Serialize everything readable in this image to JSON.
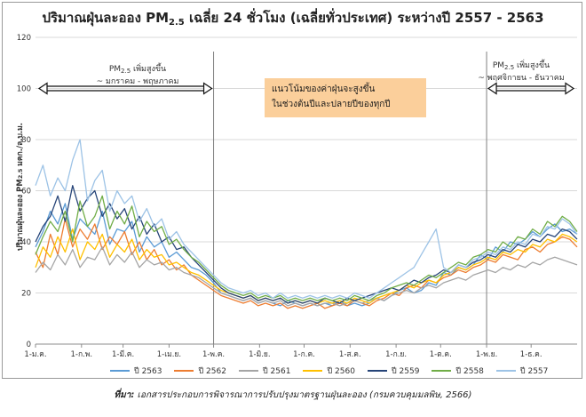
{
  "title": {
    "prefix": "ปริมาณฝุ่นละออง PM",
    "sub": "2.5",
    "suffix": " เฉลี่ย 24 ชั่วโมง (เฉลี่ยทั่วประเทศ) ระหว่างปี 2557 - 2563"
  },
  "annotations": {
    "left_label": "PM",
    "left_label_sub": "2.5",
    "left_label_rest": " เพิ่มสูงขึ้น",
    "left_range": "~ มกราคม - พฤษภาคม",
    "right_label": "PM",
    "right_label_sub": "2.5",
    "right_label_rest": " เพิ่มสูงขึ้น",
    "right_range": "~ พฤศจิกายน - ธันวาคม",
    "note_line1": "แนวโน้มของค่าฝุ่นจะสูงขึ้น",
    "note_line2": "ในช่วงต้นปีและปลายปีของทุกปี",
    "note_color": "#fbcf9b"
  },
  "source": {
    "label": "ที่มา:",
    "text": " เอกสารประกอบการพิจารณาการปรับปรุงมาตรฐานฝุ่นละออง (กรมควบคุมมลพิษ, 2566)"
  },
  "chart_data": {
    "type": "line",
    "title": "ปริมาณฝุ่นละออง PM2.5 เฉลี่ย 24 ชั่วโมง (เฉลี่ยทั่วประเทศ) ระหว่างปี 2557 - 2563",
    "ylabel": "ปริมาณฝุ่นละออง PM2.5 มคก./ล.บ.ม.",
    "ylabel_prefix": "ปริมาณฝุ่นละออง PM",
    "ylabel_sub": "2.5",
    "ylabel_suffix": " มคก./ล.บ.ม.",
    "xlabel": "",
    "ylim": [
      0,
      120
    ],
    "yticks": [
      0,
      20,
      40,
      60,
      80,
      100,
      120
    ],
    "grid": "horizontal",
    "legend_position": "bottom",
    "x_tick_labels": [
      "1-ม.ค.",
      "1-ก.พ.",
      "1-มี.ค.",
      "1-เม.ย.",
      "1-พ.ค.",
      "1-มิ.ย.",
      "1-ก.ค.",
      "1-ส.ค.",
      "1-ก.ย.",
      "1-ต.ค.",
      "1-พ.ย.",
      "1-ธ.ค."
    ],
    "x_tick_days": [
      1,
      32,
      60,
      91,
      121,
      152,
      182,
      213,
      244,
      274,
      305,
      335
    ],
    "x_max_day": 366,
    "vertical_markers_day": [
      121,
      305
    ],
    "categories_note": "day of year, sampled every 5 days starting at day 1",
    "series": [
      {
        "name": "ปี 2563",
        "color": "#5b9bd5",
        "values": [
          38,
          44,
          52,
          47,
          55,
          41,
          49,
          46,
          43,
          52,
          39,
          45,
          44,
          48,
          36,
          42,
          38,
          40,
          34,
          36,
          33,
          30,
          29,
          27,
          24,
          20,
          19,
          18,
          17,
          18,
          16,
          17,
          16,
          15,
          17,
          16,
          15,
          16,
          15,
          16,
          15,
          17,
          15,
          16,
          15,
          16,
          18,
          17,
          19,
          21,
          22,
          20,
          21,
          24,
          23,
          28,
          27,
          30,
          29,
          31,
          35,
          33,
          38,
          36,
          40,
          39,
          41,
          44,
          42,
          45,
          47,
          44,
          45,
          43
        ]
      },
      {
        "name": "ปี 2562",
        "color": "#ed7d31",
        "values": [
          36,
          30,
          43,
          35,
          49,
          38,
          45,
          41,
          47,
          37,
          42,
          39,
          44,
          35,
          40,
          33,
          37,
          31,
          33,
          29,
          31,
          27,
          25,
          23,
          21,
          19,
          18,
          17,
          16,
          17,
          15,
          16,
          15,
          16,
          14,
          15,
          14,
          15,
          16,
          14,
          15,
          16,
          15,
          17,
          16,
          15,
          17,
          18,
          20,
          19,
          22,
          23,
          22,
          25,
          24,
          26,
          27,
          29,
          28,
          30,
          31,
          33,
          32,
          35,
          34,
          33,
          37,
          38,
          36,
          39,
          40,
          42,
          41,
          38
        ]
      },
      {
        "name": "ปี 2561",
        "color": "#a5a5a5",
        "values": [
          28,
          32,
          29,
          35,
          31,
          37,
          30,
          34,
          33,
          38,
          31,
          35,
          32,
          36,
          30,
          33,
          31,
          32,
          29,
          30,
          28,
          27,
          26,
          24,
          22,
          20,
          19,
          18,
          17,
          18,
          16,
          17,
          16,
          17,
          15,
          16,
          15,
          16,
          15,
          16,
          16,
          15,
          16,
          17,
          16,
          17,
          18,
          17,
          19,
          20,
          21,
          20,
          22,
          23,
          22,
          24,
          25,
          26,
          25,
          27,
          28,
          29,
          28,
          30,
          29,
          31,
          30,
          32,
          31,
          33,
          34,
          33,
          32,
          31
        ]
      },
      {
        "name": "ปี 2560",
        "color": "#ffc000",
        "values": [
          30,
          38,
          34,
          42,
          36,
          45,
          33,
          40,
          37,
          43,
          34,
          39,
          36,
          41,
          33,
          37,
          34,
          35,
          31,
          32,
          30,
          28,
          27,
          25,
          23,
          21,
          20,
          19,
          18,
          19,
          17,
          18,
          17,
          18,
          16,
          17,
          16,
          17,
          16,
          17,
          16,
          17,
          16,
          18,
          17,
          16,
          18,
          19,
          20,
          21,
          23,
          22,
          24,
          25,
          24,
          27,
          28,
          30,
          29,
          31,
          32,
          34,
          33,
          36,
          35,
          37,
          36,
          39,
          38,
          41,
          40,
          43,
          42,
          40
        ]
      },
      {
        "name": "ปี 2559",
        "color": "#264478",
        "values": [
          40,
          46,
          50,
          58,
          48,
          62,
          52,
          57,
          60,
          50,
          55,
          49,
          53,
          45,
          50,
          43,
          47,
          40,
          42,
          37,
          38,
          34,
          31,
          28,
          25,
          22,
          20,
          19,
          18,
          19,
          17,
          18,
          17,
          18,
          16,
          17,
          16,
          17,
          16,
          18,
          17,
          16,
          18,
          17,
          18,
          19,
          20,
          21,
          22,
          21,
          23,
          25,
          24,
          26,
          27,
          29,
          28,
          31,
          30,
          32,
          33,
          35,
          34,
          37,
          36,
          39,
          38,
          41,
          40,
          43,
          42,
          45,
          44,
          41
        ]
      },
      {
        "name": "ปี 2558",
        "color": "#70ad47",
        "values": [
          35,
          42,
          48,
          44,
          52,
          40,
          56,
          46,
          50,
          58,
          45,
          52,
          47,
          54,
          42,
          48,
          44,
          46,
          39,
          41,
          37,
          34,
          32,
          29,
          26,
          23,
          21,
          20,
          19,
          20,
          18,
          19,
          18,
          19,
          17,
          18,
          17,
          18,
          17,
          18,
          17,
          18,
          17,
          19,
          18,
          17,
          19,
          20,
          22,
          23,
          24,
          23,
          25,
          27,
          26,
          28,
          30,
          32,
          31,
          34,
          35,
          37,
          36,
          40,
          38,
          42,
          41,
          45,
          43,
          48,
          46,
          50,
          48,
          44
        ]
      },
      {
        "name": "ปี 2557",
        "color": "#9dc3e6",
        "values": [
          62,
          70,
          58,
          65,
          60,
          72,
          80,
          56,
          64,
          68,
          52,
          60,
          55,
          58,
          48,
          53,
          46,
          49,
          41,
          44,
          39,
          36,
          33,
          30,
          27,
          24,
          22,
          21,
          20,
          21,
          19,
          20,
          18,
          20,
          18,
          19,
          18,
          19,
          18,
          19,
          18,
          19,
          18,
          20,
          19,
          18,
          20,
          22,
          24,
          26,
          28,
          30,
          35,
          40,
          45,
          30,
          28,
          31,
          30,
          33,
          34,
          36,
          35,
          38,
          37,
          40,
          39,
          43,
          42,
          46,
          45,
          49,
          47,
          43
        ]
      }
    ]
  }
}
